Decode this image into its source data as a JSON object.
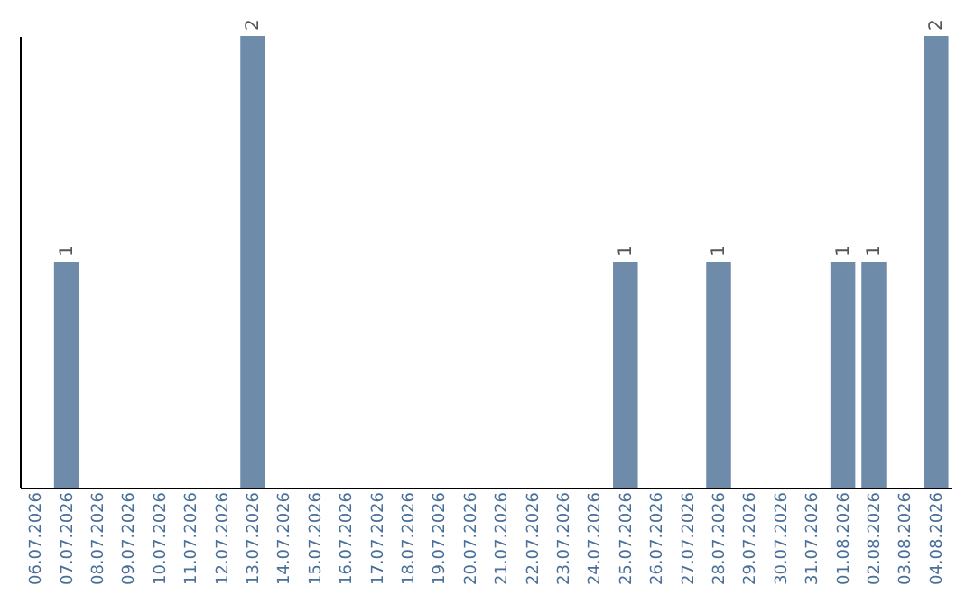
{
  "chart_data": {
    "type": "bar",
    "categories": [
      "06.07.2026",
      "07.07.2026",
      "08.07.2026",
      "09.07.2026",
      "10.07.2026",
      "11.07.2026",
      "12.07.2026",
      "13.07.2026",
      "14.07.2026",
      "15.07.2026",
      "16.07.2026",
      "17.07.2026",
      "18.07.2026",
      "19.07.2026",
      "20.07.2026",
      "21.07.2026",
      "22.07.2026",
      "23.07.2026",
      "24.07.2026",
      "25.07.2026",
      "26.07.2026",
      "27.07.2026",
      "28.07.2026",
      "29.07.2026",
      "30.07.2026",
      "31.07.2026",
      "01.08.2026",
      "02.08.2026",
      "03.08.2026",
      "04.08.2026"
    ],
    "values": [
      0,
      1,
      0,
      0,
      0,
      0,
      0,
      2,
      0,
      0,
      0,
      0,
      0,
      0,
      0,
      0,
      0,
      0,
      0,
      1,
      0,
      0,
      1,
      0,
      0,
      0,
      1,
      1,
      0,
      2
    ],
    "value_labels": [
      null,
      "1",
      null,
      null,
      null,
      null,
      null,
      "2",
      null,
      null,
      null,
      null,
      null,
      null,
      null,
      null,
      null,
      null,
      null,
      "1",
      null,
      null,
      "1",
      null,
      null,
      null,
      "1",
      "1",
      null,
      "2"
    ],
    "color": "#6e8caa",
    "tick_labels": "x",
    "grid": false
  }
}
